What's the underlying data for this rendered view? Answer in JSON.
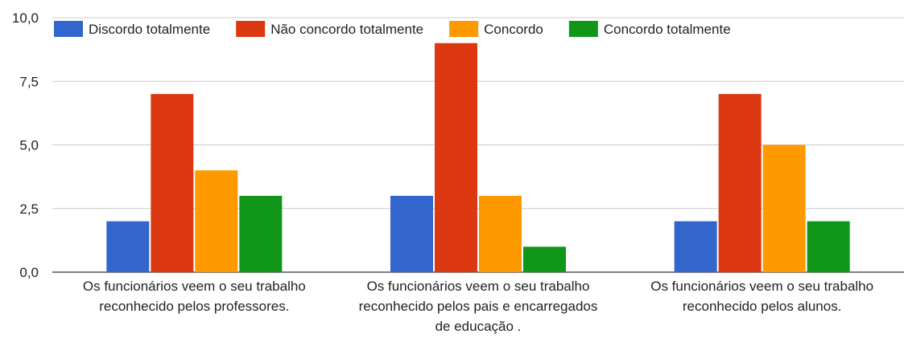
{
  "chart_data": {
    "type": "bar",
    "title": "",
    "xlabel": "",
    "ylabel": "",
    "ylim": [
      0,
      10
    ],
    "y_ticks": [
      "0,0",
      "2,5",
      "5,0",
      "7,5",
      "10,0"
    ],
    "y_tick_values": [
      0,
      2.5,
      5,
      7.5,
      10
    ],
    "grid": true,
    "legend_position": "top-left",
    "categories": [
      [
        "Os funcionários veem o seu trabalho",
        "reconhecido pelos professores."
      ],
      [
        "Os funcionários veem o seu trabalho",
        "reconhecido pelos pais e encarregados",
        "de educação ."
      ],
      [
        "Os funcionários veem o seu trabalho",
        "reconhecido pelos alunos."
      ]
    ],
    "series": [
      {
        "name": "Discordo totalmente",
        "color": "#3366cc",
        "values": [
          2,
          3,
          2
        ]
      },
      {
        "name": "Não concordo totalmente",
        "color": "#dc3912",
        "values": [
          7,
          9,
          7
        ]
      },
      {
        "name": "Concordo",
        "color": "#ff9900",
        "values": [
          4,
          3,
          5
        ]
      },
      {
        "name": "Concordo totalmente",
        "color": "#109618",
        "values": [
          3,
          1,
          2
        ]
      }
    ]
  }
}
